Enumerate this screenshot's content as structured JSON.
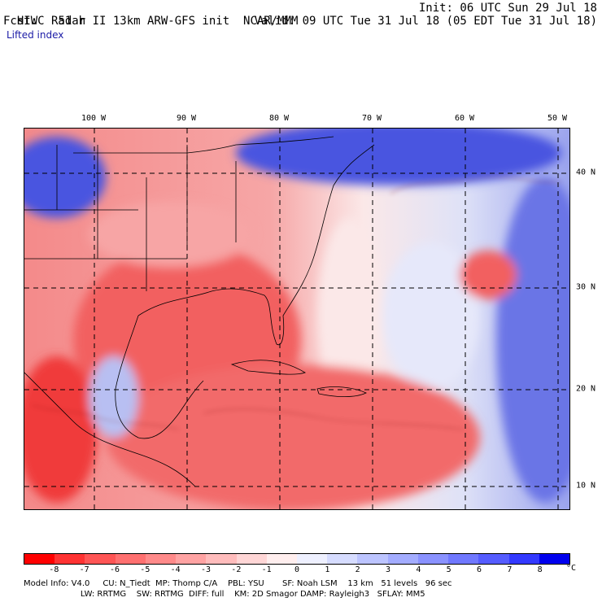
{
  "header": {
    "title_left": "HIWC Radar II 13km ARW-GFS init",
    "title_org": "NCAR/MMM",
    "init": "Init: 06 UTC Sun 29 Jul 18",
    "fcst_label": "Fcst:",
    "fcst_value": "51 h",
    "valid": "Valid: 09 UTC Tue 31 Jul 18 (05 EDT Tue 31 Jul 18)",
    "field": "Lifted index"
  },
  "axes": {
    "lon_labels": [
      "100 W",
      "90 W",
      "80 W",
      "70 W",
      "60 W",
      "50 W"
    ],
    "lat_labels": [
      "40 N",
      "30 N",
      "20 N",
      "10 N"
    ]
  },
  "colorbar": {
    "labels": [
      "-8",
      "-7",
      "-6",
      "-5",
      "-4",
      "-3",
      "-2",
      "-1",
      "0",
      "1",
      "2",
      "3",
      "4",
      "5",
      "6",
      "7",
      "8"
    ],
    "unit": "°C",
    "colors": [
      "#ff0000",
      "#ff3333",
      "#ff5555",
      "#ff7070",
      "#ff8a8a",
      "#ffa3a3",
      "#ffbcbc",
      "#ffd6d6",
      "#ffeeee",
      "#eef0ff",
      "#d6dcff",
      "#bcc4ff",
      "#a3acff",
      "#8a92ff",
      "#7078ff",
      "#555cff",
      "#3339ff",
      "#0000ee"
    ]
  },
  "footer": {
    "line1": "Model Info: V4.0     CU: N_Tiedt  MP: Thomp C/A    PBL: YSU       SF: Noah LSM    13 km   51 levels   96 sec",
    "line2": "                      LW: RRTMG    SW: RRTMG  DIFF: full    KM: 2D Smagor DAMP: Rayleigh3   SFLAY: MM5"
  },
  "map_colors": {
    "warm_strong": "#f24a4a",
    "warm": "#f48a8a",
    "warm_light": "#f9c4c4",
    "neutral": "#fbe8e8",
    "cool_light": "#dfe2f7",
    "cool": "#9aa3ee",
    "cool_strong": "#4a55e0",
    "coast": "#000000",
    "grid": "#000000"
  }
}
